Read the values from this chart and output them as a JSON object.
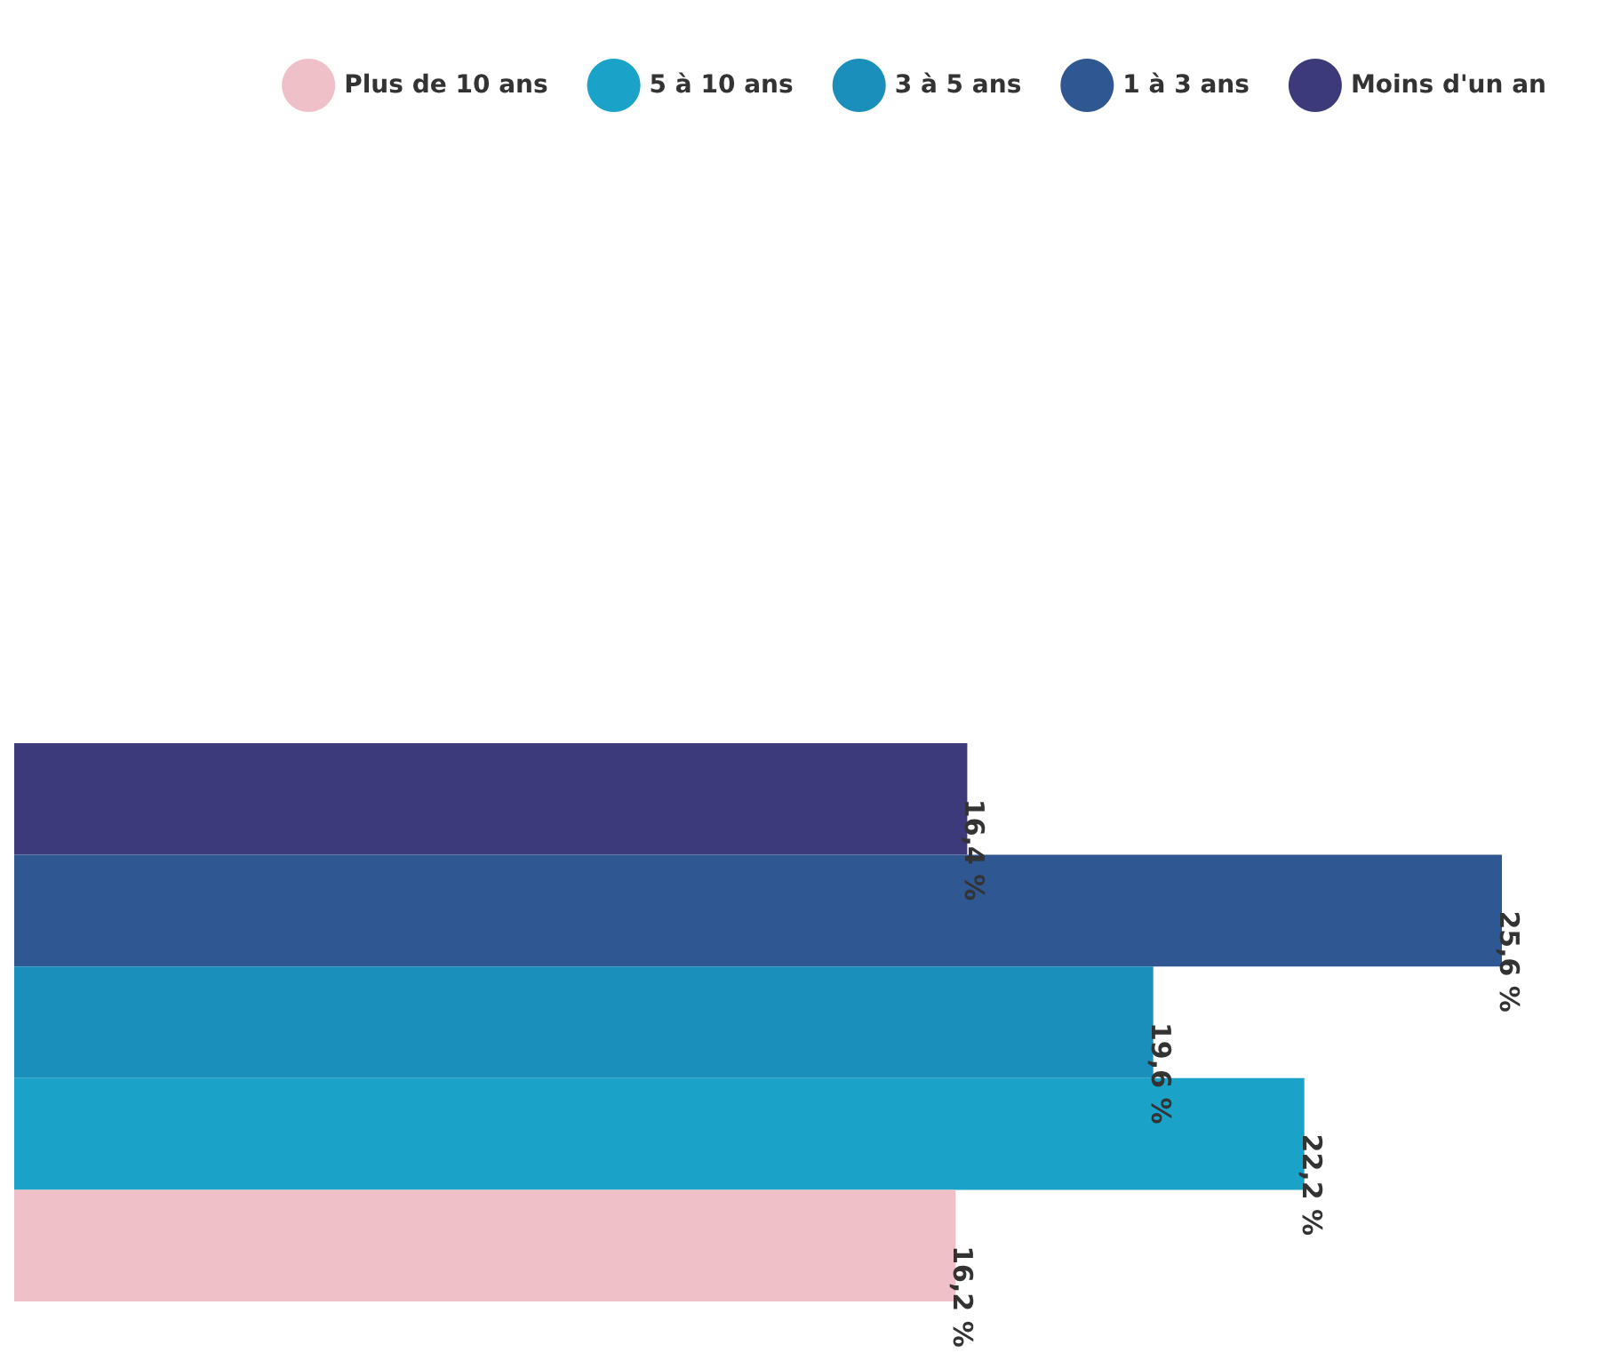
{
  "chart_data": {
    "type": "bar",
    "orientation": "horizontal",
    "stacked": true,
    "categories": [
      null,
      null,
      null,
      null,
      null
    ],
    "series": [
      {
        "name": "Moins d'un an",
        "color": "#3d3a7c",
        "values": [
          16.4,
          null,
          null,
          null,
          null
        ],
        "value_labels": [
          "16,4 %",
          null,
          null,
          null,
          null
        ]
      },
      {
        "name": "1 à 3 ans",
        "color": "#2f5791",
        "values": [
          null,
          25.6,
          null,
          null,
          null
        ],
        "value_labels": [
          null,
          "25,6 %",
          null,
          null,
          null
        ]
      },
      {
        "name": "3 à 5 ans",
        "color": "#1b8fbb",
        "values": [
          null,
          null,
          19.6,
          null,
          null
        ],
        "value_labels": [
          null,
          null,
          "19,6 %",
          null,
          null
        ]
      },
      {
        "name": "5 à 10 ans",
        "color": "#1ba2c8",
        "values": [
          null,
          null,
          null,
          22.2,
          null
        ],
        "value_labels": [
          null,
          null,
          null,
          "22,2 %",
          null
        ]
      },
      {
        "name": "Plus de 10 ans",
        "color": "#f0c0c8",
        "values": [
          null,
          null,
          null,
          null,
          16.2
        ],
        "value_labels": [
          null,
          null,
          null,
          null,
          "16,2 %"
        ]
      }
    ],
    "legend": "top right",
    "tick_labels": false
  }
}
